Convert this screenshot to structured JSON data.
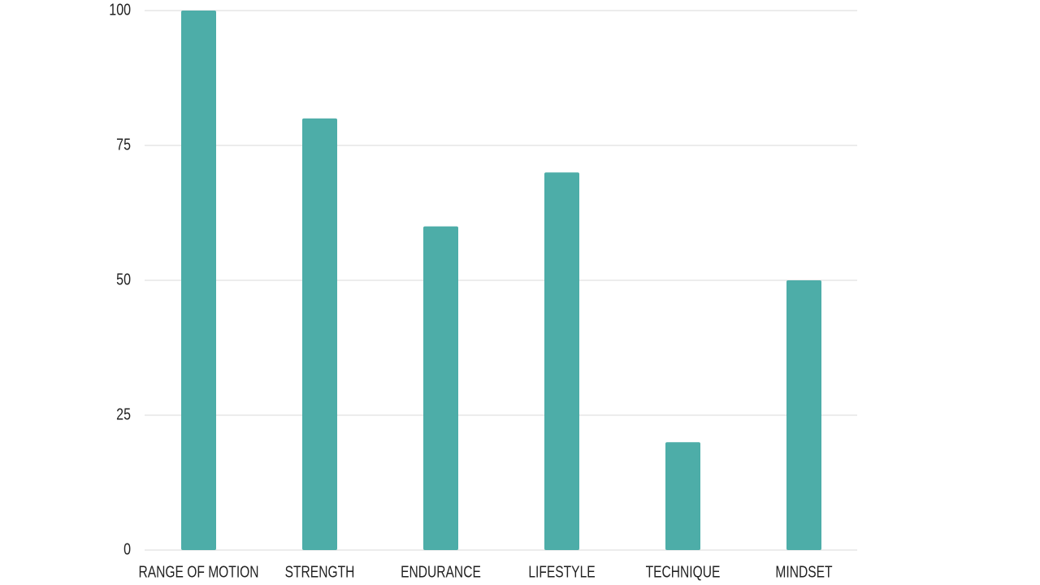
{
  "chart_data": {
    "type": "bar",
    "categories": [
      "RANGE OF MOTION",
      "STRENGTH",
      "ENDURANCE",
      "LIFESTYLE",
      "TECHNIQUE",
      "MINDSET"
    ],
    "values": [
      100,
      80,
      60,
      70,
      20,
      50
    ],
    "color": "#4dada8",
    "ylim": [
      0,
      100
    ],
    "yticks": [
      0,
      25,
      50,
      75,
      100
    ],
    "grid": true
  }
}
